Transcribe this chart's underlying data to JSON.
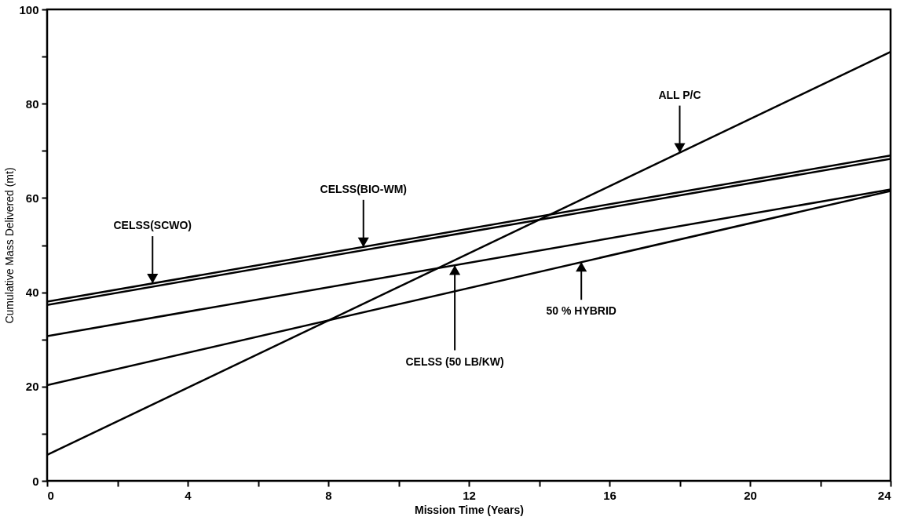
{
  "chart_data": {
    "type": "line",
    "xlabel": "Mission Time (Years)",
    "ylabel": "Cumulative Mass Delivered (mt)",
    "xlim": [
      0,
      24
    ],
    "ylim": [
      0,
      100
    ],
    "xticks": [
      0,
      {
        "value": 2,
        "label": null
      },
      4,
      {
        "value": 6,
        "label": null
      },
      8,
      {
        "value": 10,
        "label": null
      },
      12,
      {
        "value": 14,
        "label": null
      },
      16,
      {
        "value": 18,
        "label": null
      },
      20,
      {
        "value": 22,
        "label": null
      },
      24
    ],
    "yticks": [
      0,
      {
        "value": 10,
        "label": null
      },
      20,
      {
        "value": 30,
        "label": null
      },
      40,
      {
        "value": 50,
        "label": null
      },
      60,
      {
        "value": 70,
        "label": null
      },
      80,
      {
        "value": 90,
        "label": null
      },
      100
    ],
    "x": [
      0,
      24
    ],
    "grid": false,
    "legend": false,
    "marker": "none",
    "line_style": "solid",
    "series": [
      {
        "color": "#000000",
        "values": [
          38.0,
          69.0
        ]
      },
      {
        "color": "#000000",
        "values": [
          37.3,
          68.3
        ]
      },
      {
        "color": "#000000",
        "values": [
          5.5,
          91.0
        ]
      },
      {
        "color": "#000000",
        "values": [
          30.7,
          61.8
        ]
      },
      {
        "color": "#000000",
        "values": [
          20.3,
          61.5
        ]
      }
    ],
    "annotations": [
      {
        "text": "CELSS(SCWO)",
        "x": 3,
        "y": 41.9
      },
      {
        "text": "CELSS(BIO-WM)",
        "x": 9,
        "y": 49.6
      },
      {
        "text": "ALL P/C",
        "x": 18,
        "y": 69.6
      },
      {
        "text": "CELSS (50 LB/KW)",
        "x": 11.6,
        "y": 45.7
      },
      {
        "text": "50 % HYBRID",
        "x": 15.2,
        "y": 46.4
      }
    ]
  }
}
